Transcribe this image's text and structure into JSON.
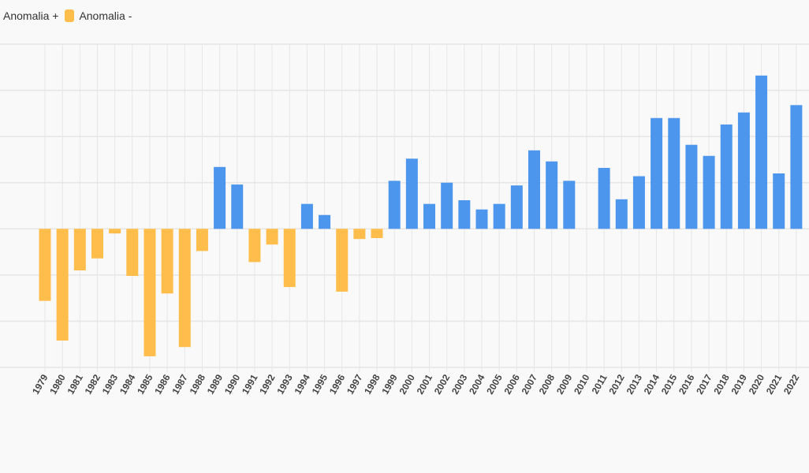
{
  "legend": {
    "items": [
      {
        "label": "Anomalia +",
        "color": ""
      },
      {
        "label": "Anomalia -",
        "color": "#ffbe4c"
      }
    ]
  },
  "colors": {
    "positive": "#4d96ee",
    "negative": "#ffbe4c",
    "grid": "#e6e6e6",
    "tick_text": "#444444"
  },
  "chart_data": {
    "type": "bar",
    "title": "",
    "xlabel": "",
    "ylabel": "",
    "categories": [
      "1979",
      "1980",
      "1981",
      "1982",
      "1983",
      "1984",
      "1985",
      "1986",
      "1987",
      "1988",
      "1989",
      "1990",
      "1991",
      "1992",
      "1993",
      "1994",
      "1995",
      "1996",
      "1997",
      "1998",
      "1999",
      "2000",
      "2001",
      "2002",
      "2003",
      "2004",
      "2005",
      "2006",
      "2007",
      "2008",
      "2009",
      "2010",
      "2011",
      "2012",
      "2013",
      "2014",
      "2015",
      "2016",
      "2017",
      "2018",
      "2019",
      "2020",
      "2021",
      "2022"
    ],
    "values": [
      -0.78,
      -1.21,
      -0.45,
      -0.32,
      -0.05,
      -0.51,
      -1.38,
      -0.7,
      -1.28,
      -0.24,
      0.67,
      0.48,
      -0.36,
      -0.17,
      -0.63,
      0.27,
      0.15,
      -0.68,
      -0.11,
      -0.1,
      0.52,
      0.76,
      0.27,
      0.5,
      0.31,
      0.21,
      0.27,
      0.47,
      0.85,
      0.73,
      0.52,
      0.0,
      0.66,
      0.32,
      0.57,
      1.2,
      1.2,
      0.91,
      0.79,
      1.13,
      1.26,
      1.66,
      0.6,
      1.34
    ],
    "ylim": [
      -1.5,
      2.0
    ],
    "grid": true,
    "legend_position": "top-left"
  }
}
